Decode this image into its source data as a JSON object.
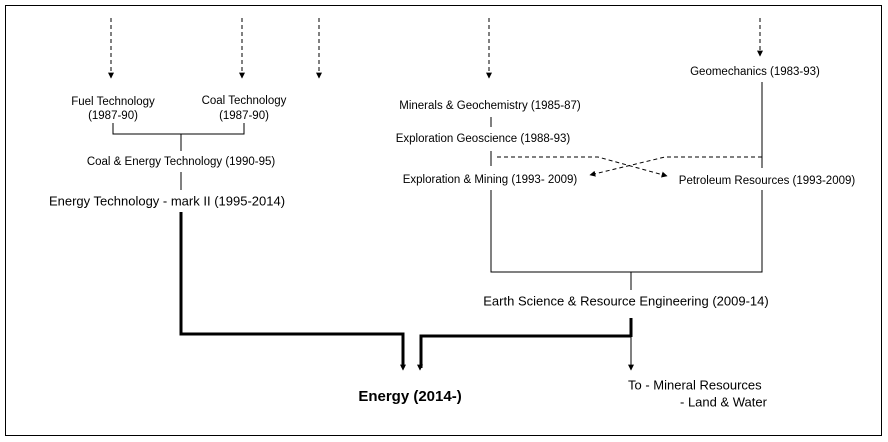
{
  "nodes": [
    {
      "lines": [
        "Fuel Technology",
        "(1987-90)"
      ]
    },
    {
      "lines": [
        "Coal Technology",
        "(1987-90)"
      ]
    },
    {
      "lines": [
        "Coal & Energy Technology (1990-95)"
      ]
    },
    {
      "lines": [
        "Energy Technology - mark II (1995-2014)"
      ]
    },
    {
      "lines": [
        "Minerals & Geochemistry (1985-87)"
      ]
    },
    {
      "lines": [
        "Exploration Geoscience (1988-93)"
      ]
    },
    {
      "lines": [
        "Exploration &  Mining (1993- 2009)"
      ]
    },
    {
      "lines": [
        "Geomechanics (1983-93)"
      ]
    },
    {
      "lines": [
        "Petroleum Resources (1993-2009)"
      ]
    },
    {
      "lines": [
        "Earth Science & Resource Engineering (2009-14)"
      ]
    },
    {
      "lines": [
        "Energy (2014-)"
      ]
    },
    {
      "lines": [
        "To - Mineral Resources",
        "- Land & Water"
      ]
    }
  ]
}
